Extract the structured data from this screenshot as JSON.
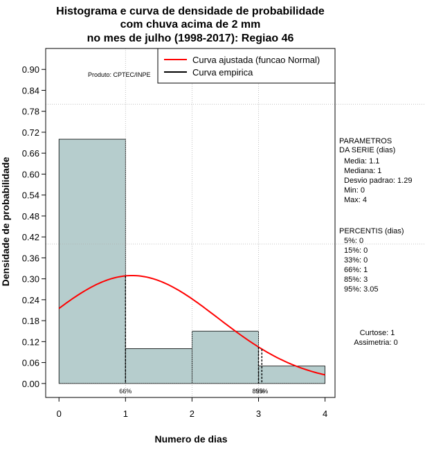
{
  "chart_data": {
    "type": "histogram",
    "title_lines": [
      "Histograma e curva de densidade de probabilidade",
      "com chuva acima de 2 mm",
      "no mes de julho (1998-2017): Regiao 46"
    ],
    "xlabel": "Numero de dias",
    "ylabel": "Densidade de probabilidade",
    "xlim": [
      -0.2,
      4.15
    ],
    "ylim": [
      -0.04,
      0.96
    ],
    "x_ticks": [
      0,
      1,
      2,
      3,
      4
    ],
    "y_ticks": [
      0.0,
      0.06,
      0.12,
      0.18,
      0.24,
      0.3,
      0.36,
      0.42,
      0.48,
      0.54,
      0.6,
      0.66,
      0.72,
      0.78,
      0.84,
      0.9
    ],
    "y_tick_labels": [
      "0.00",
      "0.06",
      "0.12",
      "0.18",
      "0.24",
      "0.30",
      "0.36",
      "0.42",
      "0.48",
      "0.54",
      "0.60",
      "0.66",
      "0.72",
      "0.78",
      "0.84",
      "0.90"
    ],
    "grid_x": [
      1,
      2,
      3
    ],
    "grid_y": [
      0.4,
      0.8
    ],
    "bars": [
      {
        "x0": 0,
        "x1": 1,
        "value": 0.7
      },
      {
        "x0": 1,
        "x1": 2,
        "value": 0.1
      },
      {
        "x0": 2,
        "x1": 3,
        "value": 0.15
      },
      {
        "x0": 3,
        "x1": 4,
        "value": 0.05
      }
    ],
    "bar_color": "#b6cdcd",
    "normal_fit": {
      "mean": 1.1,
      "sd": 1.29,
      "x_range": [
        0,
        4
      ],
      "color": "#ff0000"
    },
    "percentile_markers": [
      {
        "x": 1.0,
        "label": "66%"
      },
      {
        "x": 3.0,
        "label": "85%"
      },
      {
        "x": 3.05,
        "label": "95%"
      }
    ],
    "legend": {
      "position": "top-right",
      "entries": [
        {
          "label": "Curva ajustada (funcao Normal)",
          "color": "#ff0000"
        },
        {
          "label": "Curva empirica",
          "color": "#000000"
        }
      ]
    },
    "source_label": "Produto: CPTEC/INPE",
    "side_panel": {
      "params_title": [
        "PARAMETROS",
        "DA SERIE (dias)"
      ],
      "params": [
        "Media: 1.1",
        "Mediana: 1",
        "Desvio padrao: 1.29",
        "Min: 0",
        "Max: 4"
      ],
      "percentiles_title": "PERCENTIS (dias)",
      "percentiles": [
        "5%: 0",
        "15%: 0",
        "33%: 0",
        "66%: 1",
        "85%: 3",
        "95%: 3.05"
      ],
      "curtose": "Curtose: 1",
      "assimetria": "Assimetria: 0"
    }
  }
}
